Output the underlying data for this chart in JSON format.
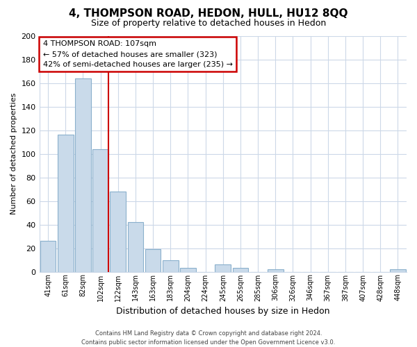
{
  "title": "4, THOMPSON ROAD, HEDON, HULL, HU12 8QQ",
  "subtitle": "Size of property relative to detached houses in Hedon",
  "xlabel": "Distribution of detached houses by size in Hedon",
  "ylabel": "Number of detached properties",
  "bar_labels": [
    "41sqm",
    "61sqm",
    "82sqm",
    "102sqm",
    "122sqm",
    "143sqm",
    "163sqm",
    "183sqm",
    "204sqm",
    "224sqm",
    "245sqm",
    "265sqm",
    "285sqm",
    "306sqm",
    "326sqm",
    "346sqm",
    "367sqm",
    "387sqm",
    "407sqm",
    "428sqm",
    "448sqm"
  ],
  "bar_values": [
    26,
    116,
    164,
    104,
    68,
    42,
    19,
    10,
    3,
    0,
    6,
    3,
    0,
    2,
    0,
    0,
    0,
    0,
    0,
    0,
    2
  ],
  "bar_color": "#c9daea",
  "bar_edge_color": "#8ab0cc",
  "vline_x_idx": 3,
  "vline_color": "#cc0000",
  "ylim": [
    0,
    200
  ],
  "yticks": [
    0,
    20,
    40,
    60,
    80,
    100,
    120,
    140,
    160,
    180,
    200
  ],
  "annotation_title": "4 THOMPSON ROAD: 107sqm",
  "annotation_line1": "← 57% of detached houses are smaller (323)",
  "annotation_line2": "42% of semi-detached houses are larger (235) →",
  "annotation_box_color": "#ffffff",
  "annotation_box_edge": "#cc0000",
  "footer_line1": "Contains HM Land Registry data © Crown copyright and database right 2024.",
  "footer_line2": "Contains public sector information licensed under the Open Government Licence v3.0.",
  "bg_color": "#ffffff",
  "grid_color": "#ccd8e8"
}
